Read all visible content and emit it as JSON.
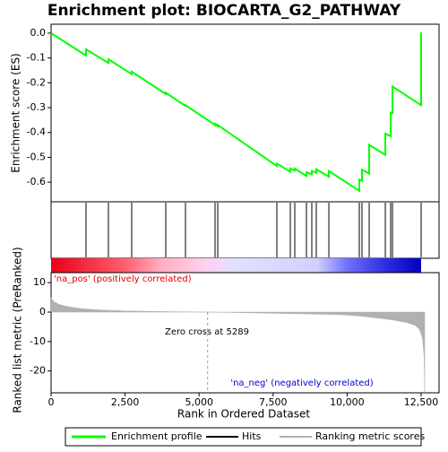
{
  "chart_data": [
    {
      "type": "line",
      "title": "Enrichment plot: BIOCARTA_G2_PATHWAY",
      "ylabel": "Enrichment score (ES)",
      "xlim": [
        0,
        13105
      ],
      "ylim": [
        -0.679,
        0.036
      ],
      "yticks": [
        {
          "value": 0,
          "label": "0.0"
        },
        {
          "value": -0.1,
          "label": "-0.1"
        },
        {
          "value": -0.2,
          "label": "-0.2"
        },
        {
          "value": -0.3,
          "label": "-0.3"
        },
        {
          "value": -0.4,
          "label": "-0.4"
        },
        {
          "value": -0.5,
          "label": "-0.5"
        },
        {
          "value": -0.6,
          "label": "-0.6"
        }
      ],
      "x": [
        0,
        1180,
        1180,
        1937,
        1937,
        2724,
        2724,
        3874,
        3874,
        4540,
        4540,
        5539,
        5539,
        5630,
        5630,
        7627,
        7627,
        8081,
        8081,
        8232,
        8232,
        8626,
        8626,
        8807,
        8807,
        8959,
        8959,
        9383,
        9383,
        10412,
        10412,
        10502,
        10502,
        10745,
        10745,
        11290,
        11290,
        11471,
        11471,
        11532,
        11532,
        12500,
        12500
      ],
      "series": [
        {
          "name": "Enrichment profile",
          "color": "#00ff00",
          "values": [
            0,
            -0.09,
            -0.065,
            -0.12,
            -0.105,
            -0.165,
            -0.155,
            -0.245,
            -0.24,
            -0.293,
            -0.29,
            -0.37,
            -0.365,
            -0.375,
            -0.37,
            -0.535,
            -0.525,
            -0.558,
            -0.545,
            -0.553,
            -0.545,
            -0.575,
            -0.56,
            -0.568,
            -0.555,
            -0.562,
            -0.548,
            -0.578,
            -0.555,
            -0.635,
            -0.59,
            -0.595,
            -0.55,
            -0.565,
            -0.45,
            -0.49,
            -0.405,
            -0.415,
            -0.32,
            -0.322,
            -0.215,
            -0.29,
            0.003
          ]
        }
      ],
      "hits": {
        "name": "Hits",
        "color": "#000000",
        "x": [
          1180,
          1937,
          2724,
          3874,
          4540,
          5539,
          5630,
          7627,
          8081,
          8232,
          8626,
          8807,
          8959,
          9383,
          10412,
          10502,
          10745,
          11290,
          11471,
          11532,
          12500
        ]
      }
    },
    {
      "type": "area",
      "ylabel": "Ranked list metric (PreRanked)",
      "xlabel": "Rank in Ordered Dataset",
      "xlim": [
        0,
        13105
      ],
      "ylim": [
        -27.4,
        13.4
      ],
      "xticks": [
        0,
        {
          "value": 2500,
          "label": "2,500"
        },
        {
          "value": 5000,
          "label": "5,000"
        },
        {
          "value": 7500,
          "label": "7,500"
        },
        {
          "value": 10000,
          "label": "10,000"
        },
        {
          "value": 12500,
          "label": "12,500"
        }
      ],
      "yticks": [
        10,
        0,
        -10,
        -20
      ],
      "zero_cross": 5289,
      "annotations": [
        "'na_pos' (positively correlated)",
        "Zero cross at 5289",
        "'na_neg' (negatively correlated)"
      ],
      "x": [
        0,
        100,
        300,
        600,
        1000,
        1500,
        2500,
        4000,
        5289,
        7000,
        8500,
        9500,
        10000,
        10500,
        11000,
        11500,
        12000,
        12300,
        12450,
        12550,
        12600,
        12621
      ],
      "series": [
        {
          "name": "Ranking metric scores",
          "color": "#b0b0b0",
          "values": [
            5,
            3.5,
            2.5,
            1.8,
            1.2,
            0.8,
            0.4,
            0.15,
            0,
            -0.3,
            -0.6,
            -0.8,
            -1,
            -1.4,
            -2,
            -2.6,
            -3.5,
            -4.5,
            -6,
            -9,
            -15,
            -27
          ]
        }
      ]
    }
  ]
}
